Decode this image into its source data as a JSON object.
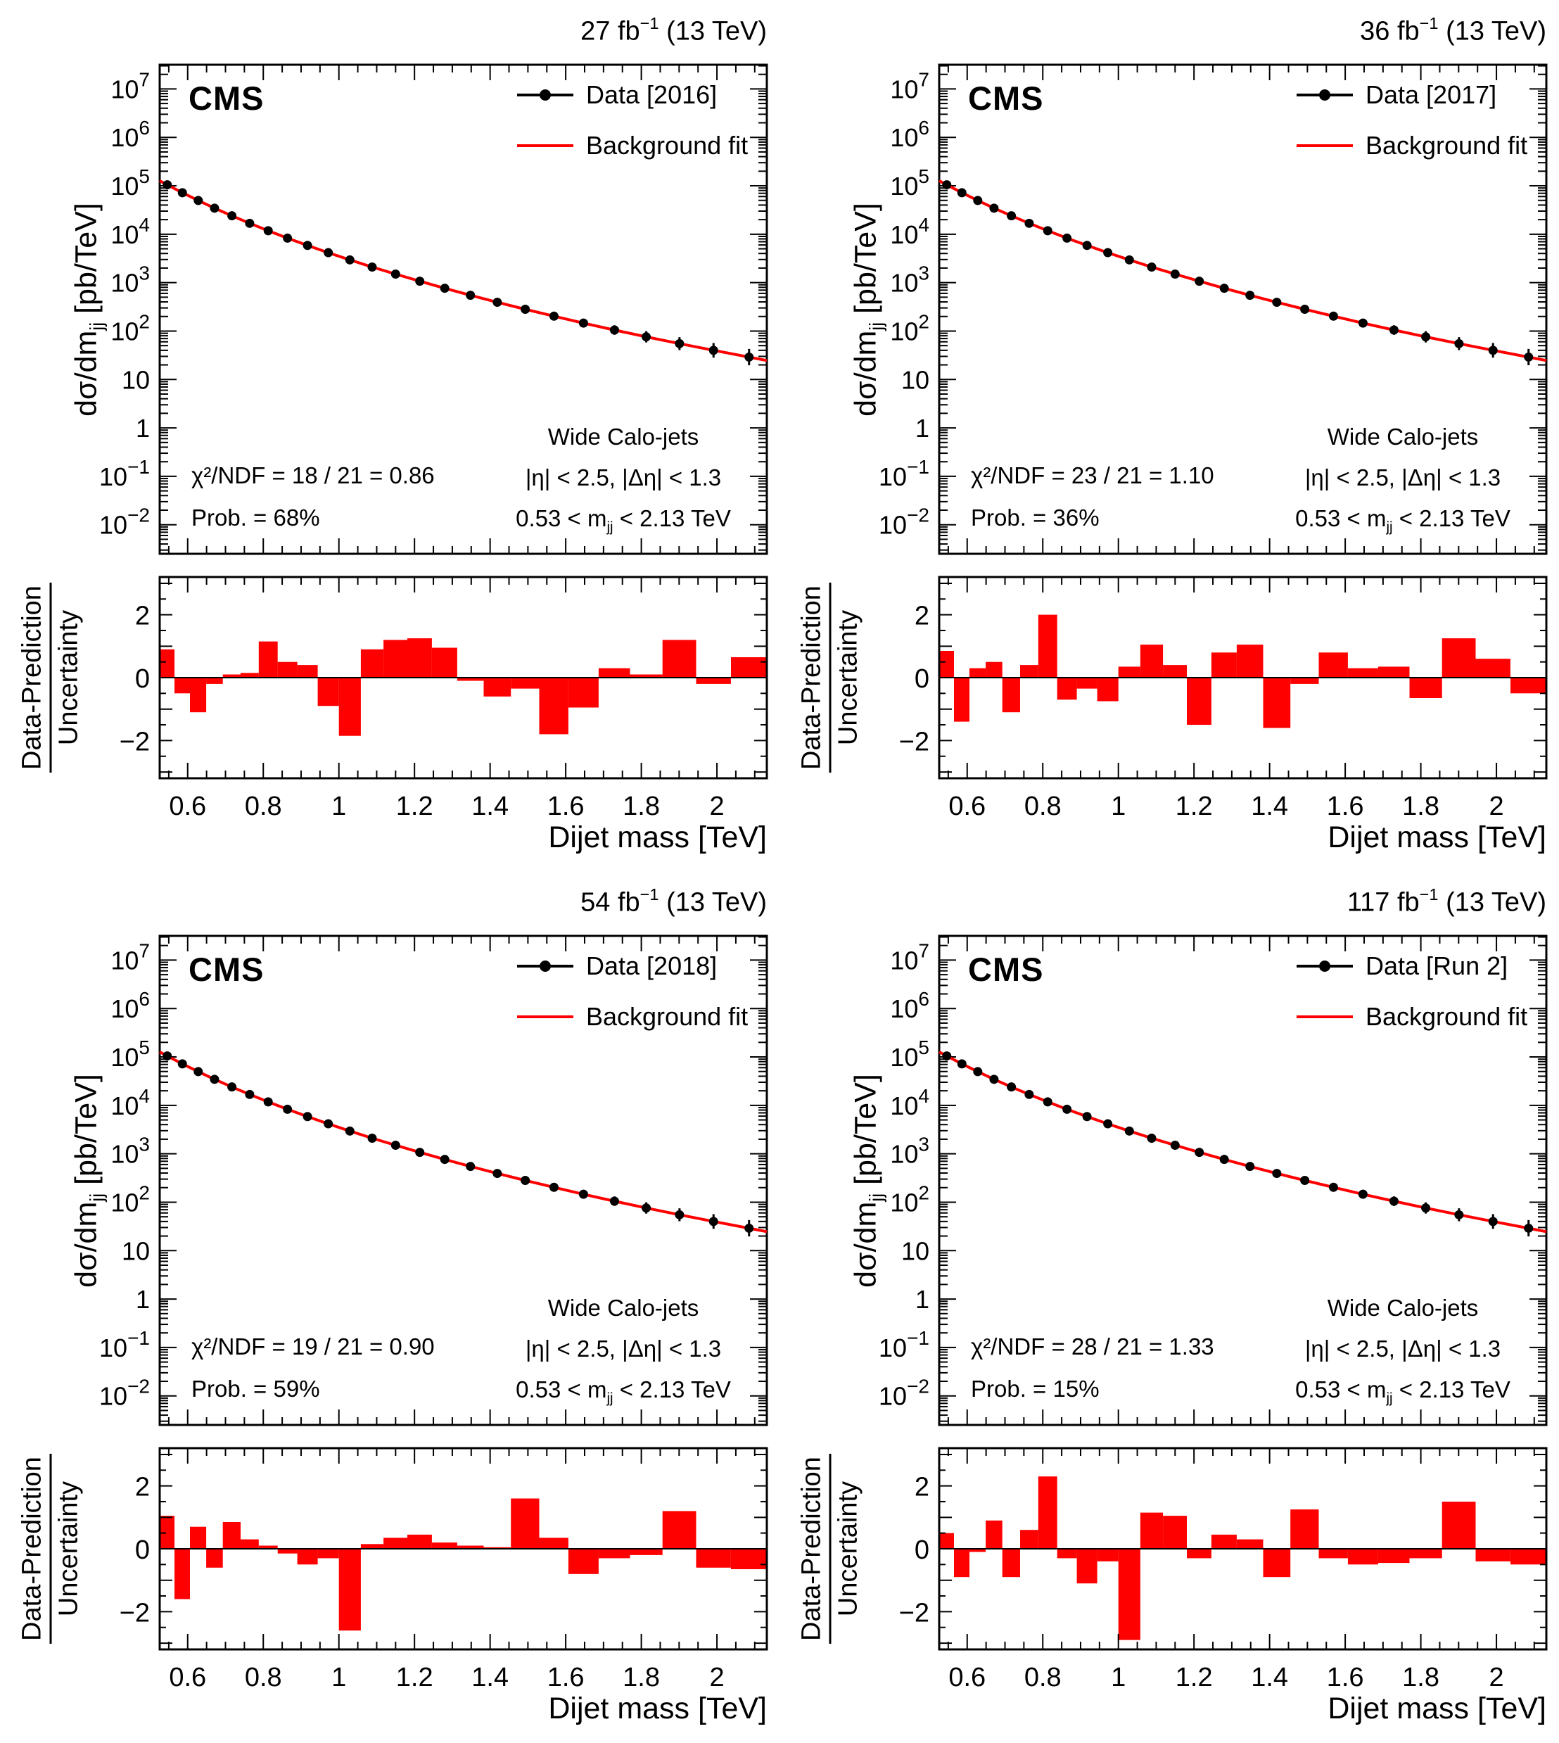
{
  "figure": {
    "cms": "CMS",
    "fit_label": "Background fit",
    "lumi_sup": "−1",
    "lumi_post": " (13 TeV)",
    "jets_label": "Wide Calo-jets",
    "eta_cut": "|η| < 2.5, |Δη| < 1.3",
    "mass_cut_pre": "0.53 < m",
    "sub_jj": "jj",
    "mass_cut_post": " < 2.13 TeV",
    "y_title_pre": "dσ/dm",
    "y_title_post": " [pb/TeV]",
    "x_title": "Dijet mass [TeV]",
    "ratio_title_num": "Data-Prediction",
    "ratio_title_den": "Uncertainty"
  },
  "panels": [
    {
      "lumi_value": "27 fb",
      "data_label": "Data [2016]",
      "chi2": "χ²/NDF = 18 / 21 = 0.86",
      "prob": "Prob. = 68%"
    },
    {
      "lumi_value": "36 fb",
      "data_label": "Data [2017]",
      "chi2": "χ²/NDF = 23 / 21 = 1.10",
      "prob": "Prob. = 36%"
    },
    {
      "lumi_value": "54 fb",
      "data_label": "Data [2018]",
      "chi2": "χ²/NDF = 19 / 21 = 0.90",
      "prob": "Prob. = 59%"
    },
    {
      "lumi_value": "117 fb",
      "data_label": "Data [Run 2]",
      "chi2": "χ²/NDF = 28 / 21 = 1.33",
      "prob": "Prob. = 15%"
    }
  ],
  "chart_data": [
    {
      "type": "scatter+line with residual bar panel",
      "name": "2016",
      "lumi_label": "27 fb⁻¹ (13 TeV)",
      "legend": [
        "Data [2016]",
        "Background fit"
      ],
      "x_label": "Dijet mass [TeV]",
      "y_label": "dσ/dm_jj [pb/TeV]",
      "ratio_label": "Data-Prediction / Uncertainty",
      "x_range_tev": [
        0.526,
        2.132
      ],
      "y_log10_range": [
        -2.6,
        7.5
      ],
      "pull_range": [
        -3.2,
        3.2
      ],
      "x_tick_labels": [
        {
          "value": 0.6,
          "label": "0.6"
        },
        {
          "value": 0.8,
          "label": "0.8"
        },
        {
          "value": 1,
          "label": "1"
        },
        {
          "value": 1.2,
          "label": "1.2"
        },
        {
          "value": 1.4,
          "label": "1.4"
        },
        {
          "value": 1.6,
          "label": "1.6"
        },
        {
          "value": 1.8,
          "label": "1.8"
        },
        {
          "value": 2,
          "label": "2"
        }
      ],
      "y_tick_exponents": [
        -2,
        -1,
        0,
        1,
        2,
        3,
        4,
        5,
        6,
        7
      ],
      "pull_tick_labels": [
        {
          "value": -2,
          "label": "−2"
        },
        {
          "value": 0,
          "label": "0"
        },
        {
          "value": 2,
          "label": "2"
        }
      ],
      "bin_edges_tev": [
        0.526,
        0.565,
        0.606,
        0.649,
        0.693,
        0.74,
        0.788,
        0.838,
        0.89,
        0.944,
        1.0,
        1.058,
        1.118,
        1.181,
        1.246,
        1.313,
        1.383,
        1.455,
        1.53,
        1.607,
        1.687,
        1.77,
        1.856,
        1.945,
        2.037,
        2.132
      ],
      "x_centers_tev": [
        0.546,
        0.586,
        0.628,
        0.671,
        0.717,
        0.764,
        0.813,
        0.864,
        0.917,
        0.972,
        1.029,
        1.088,
        1.15,
        1.214,
        1.28,
        1.348,
        1.419,
        1.493,
        1.569,
        1.647,
        1.729,
        1.813,
        1.901,
        1.991,
        2.085
      ],
      "values_pb_per_tev": [
        105000,
        72000,
        49700,
        34500,
        24000,
        16800,
        11800,
        8300,
        5870,
        4160,
        2950,
        2100,
        1500,
        1070,
        765,
        548,
        393,
        282,
        203,
        146,
        105,
        76,
        55,
        40,
        29
      ],
      "fit_note": "background fit overlaps the data points",
      "pulls": [
        0.9,
        -0.5,
        -1.1,
        -0.2,
        0.1,
        0.15,
        1.15,
        0.5,
        0.4,
        -0.9,
        -1.85,
        0.9,
        1.2,
        1.25,
        0.95,
        -0.1,
        -0.6,
        -0.35,
        -1.8,
        -0.95,
        0.3,
        0.1,
        1.2,
        -0.2,
        0.65
      ],
      "colors": {
        "data": "#000000",
        "fit": "#ff0000",
        "bars": "#ff0000"
      }
    },
    {
      "type": "scatter+line with residual bar panel",
      "name": "2017",
      "lumi_label": "36 fb⁻¹ (13 TeV)",
      "legend": [
        "Data [2017]",
        "Background fit"
      ],
      "x_label": "Dijet mass [TeV]",
      "y_label": "dσ/dm_jj [pb/TeV]",
      "ratio_label": "Data-Prediction / Uncertainty",
      "x_range_tev": [
        0.526,
        2.132
      ],
      "y_log10_range": [
        -2.6,
        7.5
      ],
      "pull_range": [
        -3.2,
        3.2
      ],
      "x_tick_labels": [
        {
          "value": 0.6,
          "label": "0.6"
        },
        {
          "value": 0.8,
          "label": "0.8"
        },
        {
          "value": 1,
          "label": "1"
        },
        {
          "value": 1.2,
          "label": "1.2"
        },
        {
          "value": 1.4,
          "label": "1.4"
        },
        {
          "value": 1.6,
          "label": "1.6"
        },
        {
          "value": 1.8,
          "label": "1.8"
        },
        {
          "value": 2,
          "label": "2"
        }
      ],
      "y_tick_exponents": [
        -2,
        -1,
        0,
        1,
        2,
        3,
        4,
        5,
        6,
        7
      ],
      "pull_tick_labels": [
        {
          "value": -2,
          "label": "−2"
        },
        {
          "value": 0,
          "label": "0"
        },
        {
          "value": 2,
          "label": "2"
        }
      ],
      "bin_edges_tev": [
        0.526,
        0.565,
        0.606,
        0.649,
        0.693,
        0.74,
        0.788,
        0.838,
        0.89,
        0.944,
        1.0,
        1.058,
        1.118,
        1.181,
        1.246,
        1.313,
        1.383,
        1.455,
        1.53,
        1.607,
        1.687,
        1.77,
        1.856,
        1.945,
        2.037,
        2.132
      ],
      "x_centers_tev": [
        0.546,
        0.586,
        0.628,
        0.671,
        0.717,
        0.764,
        0.813,
        0.864,
        0.917,
        0.972,
        1.029,
        1.088,
        1.15,
        1.214,
        1.28,
        1.348,
        1.419,
        1.493,
        1.569,
        1.647,
        1.729,
        1.813,
        1.901,
        1.991,
        2.085
      ],
      "values_pb_per_tev": [
        105000,
        72000,
        49700,
        34500,
        24000,
        16800,
        11800,
        8300,
        5870,
        4160,
        2950,
        2100,
        1500,
        1070,
        765,
        548,
        393,
        282,
        203,
        146,
        105,
        76,
        55,
        40,
        29
      ],
      "fit_note": "background fit overlaps the data points",
      "pulls": [
        0.85,
        -1.4,
        0.3,
        0.5,
        -1.1,
        0.4,
        2.0,
        -0.7,
        -0.35,
        -0.75,
        0.35,
        1.05,
        0.4,
        -1.5,
        0.8,
        1.05,
        -1.6,
        -0.2,
        0.8,
        0.3,
        0.35,
        -0.65,
        1.25,
        0.6,
        -0.5
      ],
      "colors": {
        "data": "#000000",
        "fit": "#ff0000",
        "bars": "#ff0000"
      }
    },
    {
      "type": "scatter+line with residual bar panel",
      "name": "2018",
      "lumi_label": "54 fb⁻¹ (13 TeV)",
      "legend": [
        "Data [2018]",
        "Background fit"
      ],
      "x_label": "Dijet mass [TeV]",
      "y_label": "dσ/dm_jj [pb/TeV]",
      "ratio_label": "Data-Prediction / Uncertainty",
      "x_range_tev": [
        0.526,
        2.132
      ],
      "y_log10_range": [
        -2.6,
        7.5
      ],
      "pull_range": [
        -3.2,
        3.2
      ],
      "x_tick_labels": [
        {
          "value": 0.6,
          "label": "0.6"
        },
        {
          "value": 0.8,
          "label": "0.8"
        },
        {
          "value": 1,
          "label": "1"
        },
        {
          "value": 1.2,
          "label": "1.2"
        },
        {
          "value": 1.4,
          "label": "1.4"
        },
        {
          "value": 1.6,
          "label": "1.6"
        },
        {
          "value": 1.8,
          "label": "1.8"
        },
        {
          "value": 2,
          "label": "2"
        }
      ],
      "y_tick_exponents": [
        -2,
        -1,
        0,
        1,
        2,
        3,
        4,
        5,
        6,
        7
      ],
      "pull_tick_labels": [
        {
          "value": -2,
          "label": "−2"
        },
        {
          "value": 0,
          "label": "0"
        },
        {
          "value": 2,
          "label": "2"
        }
      ],
      "bin_edges_tev": [
        0.526,
        0.565,
        0.606,
        0.649,
        0.693,
        0.74,
        0.788,
        0.838,
        0.89,
        0.944,
        1.0,
        1.058,
        1.118,
        1.181,
        1.246,
        1.313,
        1.383,
        1.455,
        1.53,
        1.607,
        1.687,
        1.77,
        1.856,
        1.945,
        2.037,
        2.132
      ],
      "x_centers_tev": [
        0.546,
        0.586,
        0.628,
        0.671,
        0.717,
        0.764,
        0.813,
        0.864,
        0.917,
        0.972,
        1.029,
        1.088,
        1.15,
        1.214,
        1.28,
        1.348,
        1.419,
        1.493,
        1.569,
        1.647,
        1.729,
        1.813,
        1.901,
        1.991,
        2.085
      ],
      "values_pb_per_tev": [
        105000,
        72000,
        49700,
        34500,
        24000,
        16800,
        11800,
        8300,
        5870,
        4160,
        2950,
        2100,
        1500,
        1070,
        765,
        548,
        393,
        282,
        203,
        146,
        105,
        76,
        55,
        40,
        29
      ],
      "fit_note": "background fit overlaps the data points",
      "pulls": [
        1.05,
        -1.6,
        0.7,
        -0.6,
        0.85,
        0.3,
        0.1,
        -0.15,
        -0.5,
        -0.3,
        -2.6,
        0.15,
        0.35,
        0.45,
        0.2,
        0.1,
        0.05,
        1.6,
        0.35,
        -0.8,
        -0.3,
        -0.2,
        1.2,
        -0.6,
        -0.65
      ],
      "colors": {
        "data": "#000000",
        "fit": "#ff0000",
        "bars": "#ff0000"
      }
    },
    {
      "type": "scatter+line with residual bar panel",
      "name": "Run 2",
      "lumi_label": "117 fb⁻¹ (13 TeV)",
      "legend": [
        "Data [Run 2]",
        "Background fit"
      ],
      "x_label": "Dijet mass [TeV]",
      "y_label": "dσ/dm_jj [pb/TeV]",
      "ratio_label": "Data-Prediction / Uncertainty",
      "x_range_tev": [
        0.526,
        2.132
      ],
      "y_log10_range": [
        -2.6,
        7.5
      ],
      "pull_range": [
        -3.2,
        3.2
      ],
      "x_tick_labels": [
        {
          "value": 0.6,
          "label": "0.6"
        },
        {
          "value": 0.8,
          "label": "0.8"
        },
        {
          "value": 1,
          "label": "1"
        },
        {
          "value": 1.2,
          "label": "1.2"
        },
        {
          "value": 1.4,
          "label": "1.4"
        },
        {
          "value": 1.6,
          "label": "1.6"
        },
        {
          "value": 1.8,
          "label": "1.8"
        },
        {
          "value": 2,
          "label": "2"
        }
      ],
      "y_tick_exponents": [
        -2,
        -1,
        0,
        1,
        2,
        3,
        4,
        5,
        6,
        7
      ],
      "pull_tick_labels": [
        {
          "value": -2,
          "label": "−2"
        },
        {
          "value": 0,
          "label": "0"
        },
        {
          "value": 2,
          "label": "2"
        }
      ],
      "bin_edges_tev": [
        0.526,
        0.565,
        0.606,
        0.649,
        0.693,
        0.74,
        0.788,
        0.838,
        0.89,
        0.944,
        1.0,
        1.058,
        1.118,
        1.181,
        1.246,
        1.313,
        1.383,
        1.455,
        1.53,
        1.607,
        1.687,
        1.77,
        1.856,
        1.945,
        2.037,
        2.132
      ],
      "x_centers_tev": [
        0.546,
        0.586,
        0.628,
        0.671,
        0.717,
        0.764,
        0.813,
        0.864,
        0.917,
        0.972,
        1.029,
        1.088,
        1.15,
        1.214,
        1.28,
        1.348,
        1.419,
        1.493,
        1.569,
        1.647,
        1.729,
        1.813,
        1.901,
        1.991,
        2.085
      ],
      "values_pb_per_tev": [
        105000,
        72000,
        49700,
        34500,
        24000,
        16800,
        11800,
        8300,
        5870,
        4160,
        2950,
        2100,
        1500,
        1070,
        765,
        548,
        393,
        282,
        203,
        146,
        105,
        76,
        55,
        40,
        29
      ],
      "fit_note": "background fit overlaps the data points",
      "pulls": [
        0.5,
        -0.9,
        -0.1,
        0.9,
        -0.9,
        0.6,
        2.3,
        -0.3,
        -1.1,
        -0.4,
        -2.9,
        1.15,
        1.05,
        -0.3,
        0.45,
        0.3,
        -0.9,
        1.25,
        -0.3,
        -0.5,
        -0.45,
        -0.3,
        1.5,
        -0.4,
        -0.5
      ],
      "colors": {
        "data": "#000000",
        "fit": "#ff0000",
        "bars": "#ff0000"
      }
    }
  ]
}
